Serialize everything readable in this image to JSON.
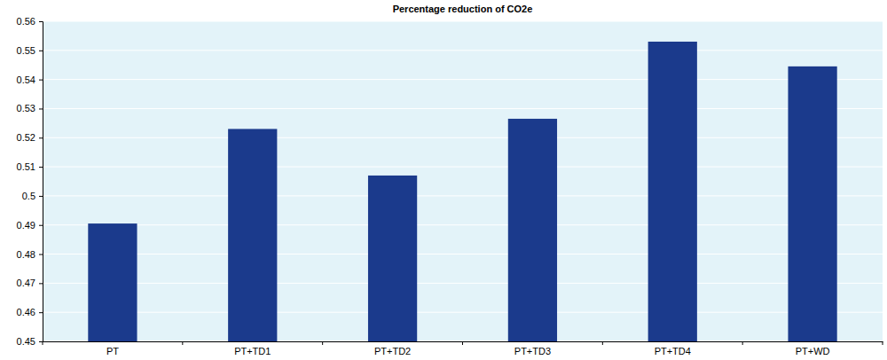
{
  "chart_data": {
    "type": "bar",
    "title": "Percentage reduction of CO2e",
    "categories": [
      "PT",
      "PT+TD1",
      "PT+TD2",
      "PT+TD3",
      "PT+TD4",
      "PT+WD"
    ],
    "values": [
      0.4905,
      0.523,
      0.507,
      0.5265,
      0.553,
      0.5445
    ],
    "color": "#1b3a8c",
    "ylim": [
      0.45,
      0.56
    ],
    "yticks": [
      0.45,
      0.46,
      0.47,
      0.48,
      0.49,
      0.5,
      0.51,
      0.52,
      0.53,
      0.54,
      0.55,
      0.56
    ],
    "grid": true
  }
}
